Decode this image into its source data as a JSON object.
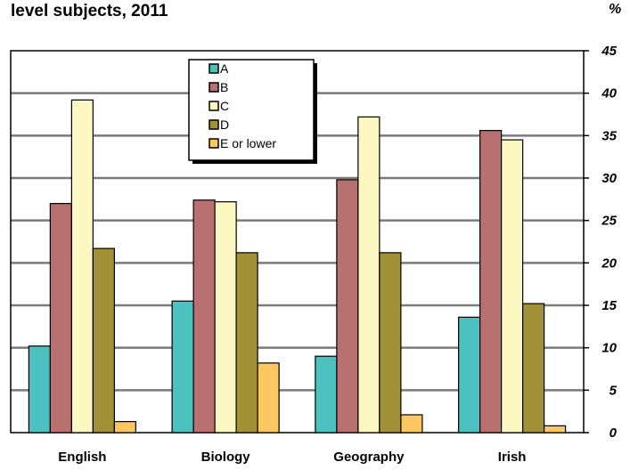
{
  "chart_data": {
    "type": "bar",
    "title": "level subjects,  2011",
    "unit_label": "%",
    "categories": [
      "English",
      "Biology",
      "Geography",
      "Irish"
    ],
    "series": [
      {
        "name": "A",
        "color": "#4dc0c0",
        "values": [
          10.2,
          15.5,
          9.0,
          13.6
        ]
      },
      {
        "name": "B",
        "color": "#b87070",
        "values": [
          27.0,
          27.4,
          29.8,
          35.6
        ]
      },
      {
        "name": "C",
        "color": "#fdf8c2",
        "values": [
          39.2,
          27.2,
          37.2,
          34.5
        ]
      },
      {
        "name": "D",
        "color": "#a39138",
        "values": [
          21.7,
          21.2,
          21.2,
          15.2
        ]
      },
      {
        "name": "E or lower",
        "color": "#fdc762",
        "values": [
          1.3,
          8.2,
          2.1,
          0.8
        ]
      }
    ],
    "ylim": [
      0,
      45
    ],
    "yticks": [
      0,
      5,
      10,
      15,
      20,
      25,
      30,
      35,
      40,
      45
    ],
    "axis_side": "right",
    "grid": true,
    "legend_position": "top-left"
  }
}
